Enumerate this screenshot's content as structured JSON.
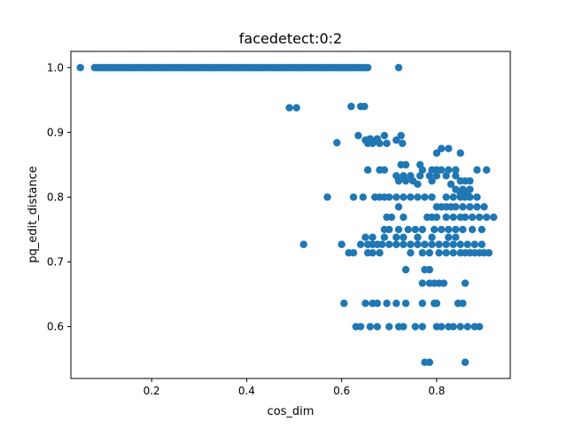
{
  "chart_data": {
    "type": "scatter",
    "title": "facedetect:0:2",
    "xlabel": "cos_dim",
    "ylabel": "pq_edit_distance",
    "xlim": [
      0.03,
      0.955
    ],
    "ylim": [
      0.52,
      1.025
    ],
    "xticks": [
      0.2,
      0.4,
      0.6,
      0.8
    ],
    "xtick_labels": [
      "0.2",
      "0.4",
      "0.6",
      "0.8"
    ],
    "yticks": [
      0.6,
      0.7,
      0.8,
      0.9,
      1.0
    ],
    "ytick_labels": [
      "0.6",
      "0.7",
      "0.8",
      "0.9",
      "1.0"
    ],
    "grid": false,
    "marker_color": "#1f77b4",
    "dense_band": {
      "y": 1.0,
      "x_from": 0.08,
      "x_to": 0.655,
      "step": 0.005
    },
    "points": [
      [
        0.05,
        1.0
      ],
      [
        0.72,
        1.0
      ],
      [
        0.49,
        0.938
      ],
      [
        0.505,
        0.938
      ],
      [
        0.62,
        0.94
      ],
      [
        0.64,
        0.94
      ],
      [
        0.648,
        0.94
      ],
      [
        0.59,
        0.884
      ],
      [
        0.635,
        0.895
      ],
      [
        0.65,
        0.888
      ],
      [
        0.66,
        0.89
      ],
      [
        0.675,
        0.89
      ],
      [
        0.69,
        0.895
      ],
      [
        0.725,
        0.895
      ],
      [
        0.715,
        0.888
      ],
      [
        0.655,
        0.883
      ],
      [
        0.665,
        0.883
      ],
      [
        0.68,
        0.883
      ],
      [
        0.695,
        0.883
      ],
      [
        0.728,
        0.883
      ],
      [
        0.81,
        0.875
      ],
      [
        0.825,
        0.875
      ],
      [
        0.8,
        0.868
      ],
      [
        0.85,
        0.868
      ],
      [
        0.655,
        0.842
      ],
      [
        0.68,
        0.842
      ],
      [
        0.69,
        0.842
      ],
      [
        0.725,
        0.85
      ],
      [
        0.735,
        0.85
      ],
      [
        0.765,
        0.85
      ],
      [
        0.77,
        0.842
      ],
      [
        0.79,
        0.842
      ],
      [
        0.8,
        0.842
      ],
      [
        0.81,
        0.842
      ],
      [
        0.825,
        0.842
      ],
      [
        0.84,
        0.842
      ],
      [
        0.885,
        0.842
      ],
      [
        0.905,
        0.842
      ],
      [
        0.715,
        0.833
      ],
      [
        0.73,
        0.833
      ],
      [
        0.745,
        0.833
      ],
      [
        0.765,
        0.833
      ],
      [
        0.785,
        0.833
      ],
      [
        0.8,
        0.833
      ],
      [
        0.82,
        0.833
      ],
      [
        0.84,
        0.833
      ],
      [
        0.72,
        0.825
      ],
      [
        0.735,
        0.825
      ],
      [
        0.75,
        0.825
      ],
      [
        0.79,
        0.825
      ],
      [
        0.85,
        0.825
      ],
      [
        0.86,
        0.825
      ],
      [
        0.87,
        0.825
      ],
      [
        0.76,
        0.82
      ],
      [
        0.83,
        0.82
      ],
      [
        0.84,
        0.812
      ],
      [
        0.855,
        0.812
      ],
      [
        0.87,
        0.812
      ],
      [
        0.85,
        0.805
      ],
      [
        0.865,
        0.805
      ],
      [
        0.57,
        0.8
      ],
      [
        0.625,
        0.8
      ],
      [
        0.645,
        0.8
      ],
      [
        0.67,
        0.8
      ],
      [
        0.68,
        0.8
      ],
      [
        0.69,
        0.8
      ],
      [
        0.7,
        0.8
      ],
      [
        0.715,
        0.8
      ],
      [
        0.73,
        0.8
      ],
      [
        0.745,
        0.8
      ],
      [
        0.76,
        0.8
      ],
      [
        0.775,
        0.8
      ],
      [
        0.79,
        0.8
      ],
      [
        0.82,
        0.8
      ],
      [
        0.835,
        0.8
      ],
      [
        0.85,
        0.8
      ],
      [
        0.86,
        0.8
      ],
      [
        0.87,
        0.8
      ],
      [
        0.885,
        0.8
      ],
      [
        0.72,
        0.785
      ],
      [
        0.8,
        0.785
      ],
      [
        0.81,
        0.785
      ],
      [
        0.82,
        0.785
      ],
      [
        0.83,
        0.785
      ],
      [
        0.84,
        0.785
      ],
      [
        0.855,
        0.785
      ],
      [
        0.87,
        0.785
      ],
      [
        0.885,
        0.785
      ],
      [
        0.9,
        0.785
      ],
      [
        0.695,
        0.769
      ],
      [
        0.705,
        0.769
      ],
      [
        0.73,
        0.769
      ],
      [
        0.78,
        0.769
      ],
      [
        0.79,
        0.769
      ],
      [
        0.8,
        0.769
      ],
      [
        0.82,
        0.769
      ],
      [
        0.835,
        0.769
      ],
      [
        0.85,
        0.769
      ],
      [
        0.86,
        0.769
      ],
      [
        0.875,
        0.769
      ],
      [
        0.89,
        0.769
      ],
      [
        0.905,
        0.769
      ],
      [
        0.92,
        0.769
      ],
      [
        0.69,
        0.75
      ],
      [
        0.7,
        0.75
      ],
      [
        0.72,
        0.75
      ],
      [
        0.74,
        0.75
      ],
      [
        0.755,
        0.75
      ],
      [
        0.77,
        0.75
      ],
      [
        0.795,
        0.75
      ],
      [
        0.81,
        0.75
      ],
      [
        0.825,
        0.75
      ],
      [
        0.84,
        0.75
      ],
      [
        0.855,
        0.75
      ],
      [
        0.875,
        0.75
      ],
      [
        0.895,
        0.75
      ],
      [
        0.65,
        0.738
      ],
      [
        0.665,
        0.738
      ],
      [
        0.69,
        0.738
      ],
      [
        0.715,
        0.738
      ],
      [
        0.73,
        0.738
      ],
      [
        0.76,
        0.738
      ],
      [
        0.79,
        0.738
      ],
      [
        0.825,
        0.738
      ],
      [
        0.84,
        0.738
      ],
      [
        0.52,
        0.727
      ],
      [
        0.6,
        0.727
      ],
      [
        0.64,
        0.727
      ],
      [
        0.655,
        0.727
      ],
      [
        0.665,
        0.727
      ],
      [
        0.675,
        0.727
      ],
      [
        0.685,
        0.727
      ],
      [
        0.7,
        0.727
      ],
      [
        0.715,
        0.727
      ],
      [
        0.73,
        0.727
      ],
      [
        0.745,
        0.727
      ],
      [
        0.76,
        0.727
      ],
      [
        0.775,
        0.727
      ],
      [
        0.79,
        0.727
      ],
      [
        0.805,
        0.727
      ],
      [
        0.82,
        0.727
      ],
      [
        0.835,
        0.727
      ],
      [
        0.85,
        0.727
      ],
      [
        0.865,
        0.727
      ],
      [
        0.88,
        0.727
      ],
      [
        0.895,
        0.727
      ],
      [
        0.615,
        0.714
      ],
      [
        0.625,
        0.714
      ],
      [
        0.655,
        0.714
      ],
      [
        0.665,
        0.714
      ],
      [
        0.68,
        0.714
      ],
      [
        0.745,
        0.714
      ],
      [
        0.77,
        0.714
      ],
      [
        0.785,
        0.714
      ],
      [
        0.805,
        0.714
      ],
      [
        0.82,
        0.714
      ],
      [
        0.835,
        0.714
      ],
      [
        0.85,
        0.714
      ],
      [
        0.86,
        0.714
      ],
      [
        0.87,
        0.714
      ],
      [
        0.88,
        0.714
      ],
      [
        0.89,
        0.714
      ],
      [
        0.9,
        0.714
      ],
      [
        0.91,
        0.714
      ],
      [
        0.735,
        0.688
      ],
      [
        0.775,
        0.688
      ],
      [
        0.785,
        0.688
      ],
      [
        0.77,
        0.667
      ],
      [
        0.785,
        0.667
      ],
      [
        0.795,
        0.667
      ],
      [
        0.805,
        0.667
      ],
      [
        0.815,
        0.667
      ],
      [
        0.86,
        0.667
      ],
      [
        0.605,
        0.636
      ],
      [
        0.65,
        0.636
      ],
      [
        0.665,
        0.636
      ],
      [
        0.675,
        0.636
      ],
      [
        0.695,
        0.636
      ],
      [
        0.715,
        0.636
      ],
      [
        0.735,
        0.636
      ],
      [
        0.77,
        0.636
      ],
      [
        0.795,
        0.636
      ],
      [
        0.8,
        0.636
      ],
      [
        0.845,
        0.636
      ],
      [
        0.855,
        0.636
      ],
      [
        0.63,
        0.6
      ],
      [
        0.64,
        0.6
      ],
      [
        0.66,
        0.6
      ],
      [
        0.675,
        0.6
      ],
      [
        0.7,
        0.6
      ],
      [
        0.72,
        0.6
      ],
      [
        0.73,
        0.6
      ],
      [
        0.755,
        0.6
      ],
      [
        0.77,
        0.6
      ],
      [
        0.8,
        0.6
      ],
      [
        0.81,
        0.6
      ],
      [
        0.825,
        0.6
      ],
      [
        0.835,
        0.6
      ],
      [
        0.85,
        0.6
      ],
      [
        0.865,
        0.6
      ],
      [
        0.88,
        0.6
      ],
      [
        0.89,
        0.6
      ],
      [
        0.775,
        0.545
      ],
      [
        0.785,
        0.545
      ],
      [
        0.86,
        0.545
      ]
    ]
  }
}
